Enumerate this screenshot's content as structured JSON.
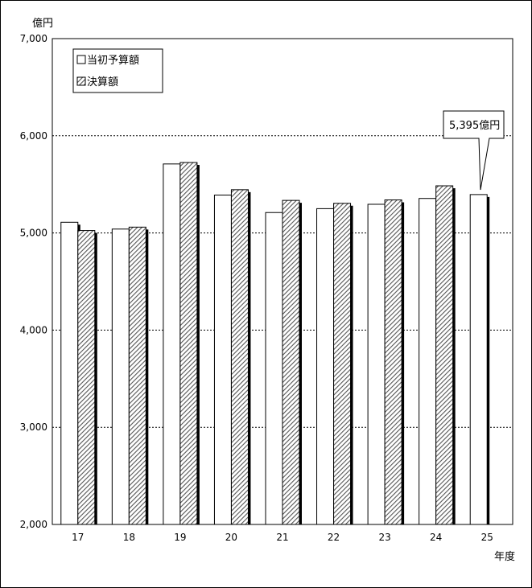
{
  "chart_data": {
    "type": "bar",
    "ylabel": "億円",
    "xlabel": "年度",
    "ylim": [
      2000,
      7000
    ],
    "yticks": [
      2000,
      3000,
      4000,
      5000,
      6000,
      7000
    ],
    "ytick_labels": [
      "2,000",
      "3,000",
      "4,000",
      "5,000",
      "6,000",
      "7,000"
    ],
    "grid": true,
    "legend_position": "top-left",
    "categories": [
      "17",
      "18",
      "19",
      "20",
      "21",
      "22",
      "23",
      "24",
      "25"
    ],
    "series": [
      {
        "name": "当初予算額",
        "values": [
          5110,
          5040,
          5710,
          5390,
          5210,
          5250,
          5295,
          5355,
          5395
        ],
        "fill": "white"
      },
      {
        "name": "決算額",
        "values": [
          5025,
          5060,
          5725,
          5445,
          5335,
          5305,
          5340,
          5485,
          null
        ],
        "fill": "hatched"
      }
    ],
    "annotation": {
      "text": "5,395億円",
      "category": "25",
      "series": 0
    }
  }
}
